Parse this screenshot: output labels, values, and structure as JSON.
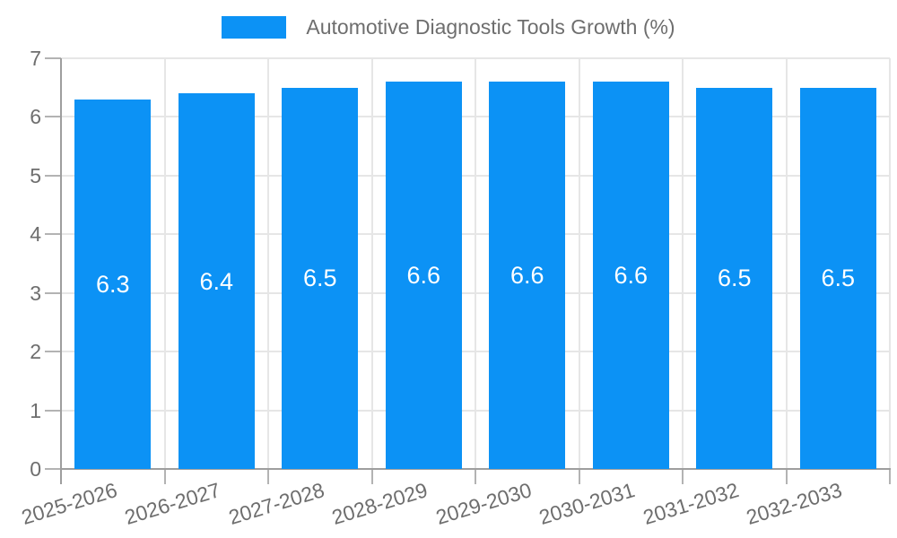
{
  "chart_data": {
    "type": "bar",
    "title": "Automotive Diagnostic Tools Growth (%)",
    "categories": [
      "2025-2026",
      "2026-2027",
      "2027-2028",
      "2028-2029",
      "2029-2030",
      "2030-2031",
      "2031-2032",
      "2032-2033"
    ],
    "values": [
      6.3,
      6.4,
      6.5,
      6.6,
      6.6,
      6.6,
      6.5,
      6.5
    ],
    "value_labels": [
      "6.3",
      "6.4",
      "6.5",
      "6.6",
      "6.6",
      "6.6",
      "6.5",
      "6.5"
    ],
    "xlabel": "",
    "ylabel": "",
    "ylim": [
      0,
      7
    ],
    "yticks": [
      0,
      1,
      2,
      3,
      4,
      5,
      6,
      7
    ],
    "grid": true,
    "legend_position": "top-center",
    "bar_color": "#0c92f5",
    "value_label_color": "#ffffff",
    "axis_text_color": "#6e6e6e"
  }
}
